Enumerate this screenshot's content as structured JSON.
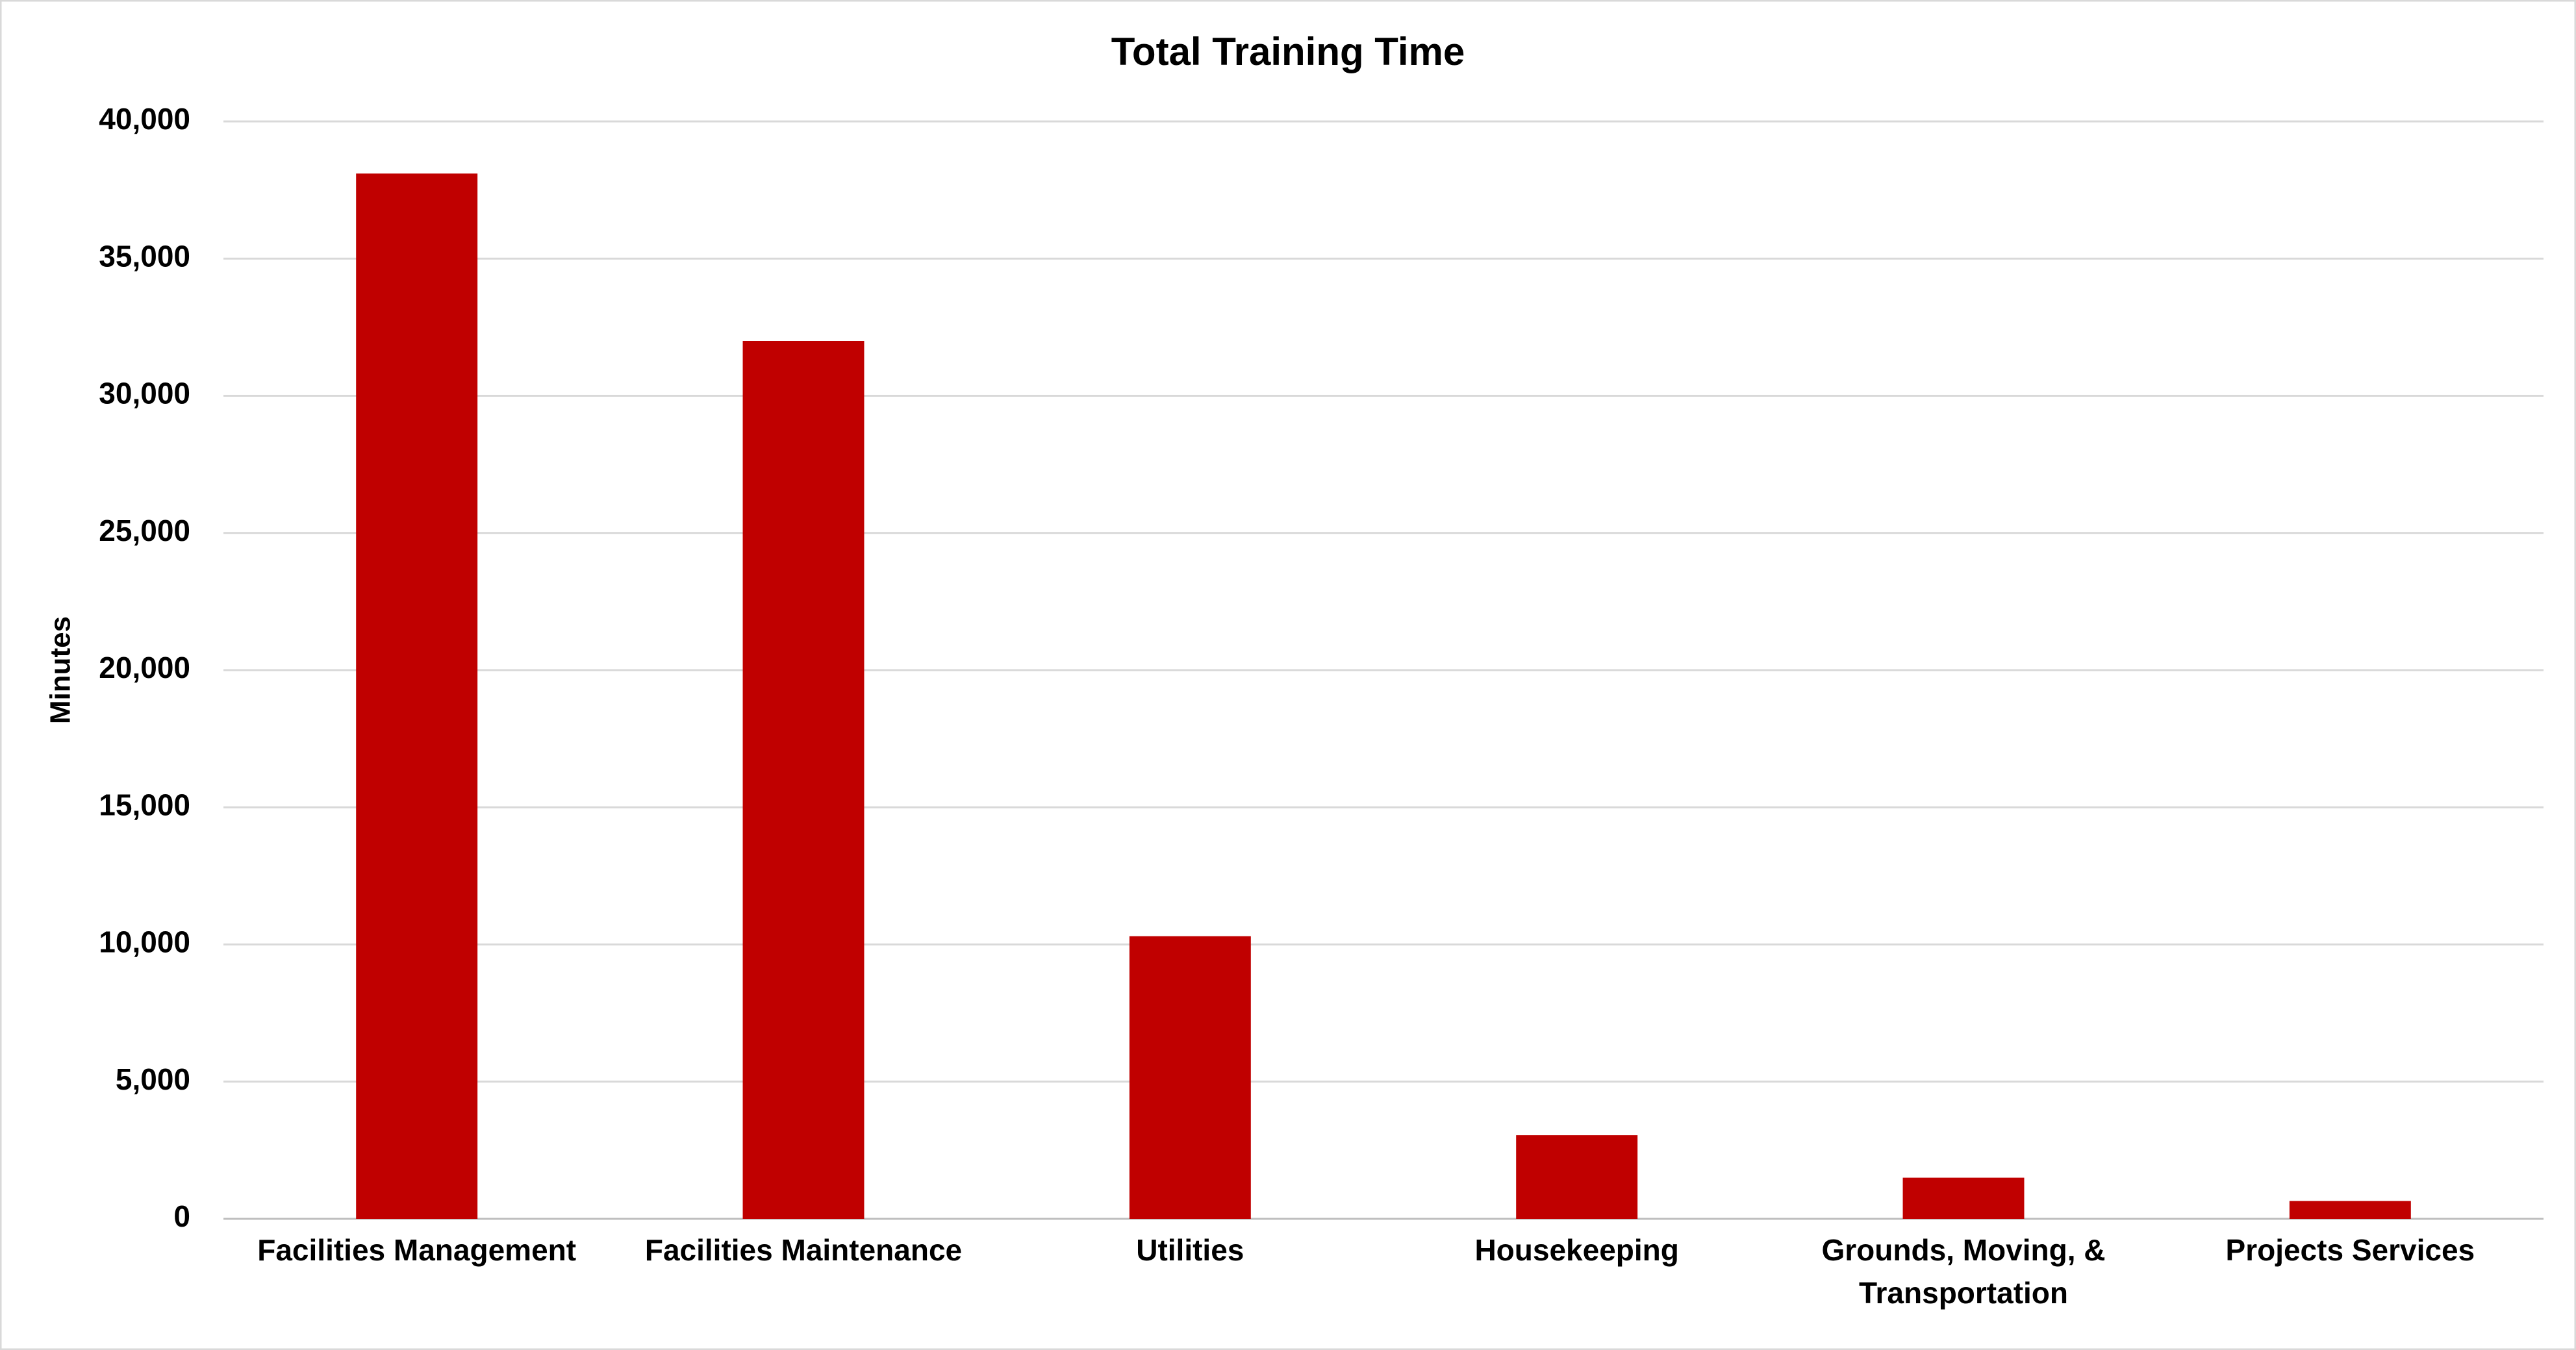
{
  "chart_data": {
    "type": "bar",
    "title": "Total Training Time",
    "y_label": "Minutes",
    "categories": [
      "Facilities Management",
      "Facilities Maintenance",
      "Utilities",
      "Housekeeping",
      "Grounds, Moving, & Transportation",
      "Projects Services"
    ],
    "values": [
      38100,
      32000,
      10300,
      3050,
      1500,
      650
    ],
    "color": "#c00000",
    "ylim": [
      0,
      40000
    ],
    "yticks": [
      0,
      {
        "value": 5000,
        "label": "5,000"
      },
      {
        "value": 10000,
        "label": "10,000"
      },
      {
        "value": 15000,
        "label": "15,000"
      },
      {
        "value": 20000,
        "label": "20,000"
      },
      {
        "value": 25000,
        "label": "25,000"
      },
      {
        "value": 30000,
        "label": "30,000"
      },
      {
        "value": 35000,
        "label": "35,000"
      },
      {
        "value": 40000,
        "label": "40,000"
      }
    ],
    "grid": true
  }
}
